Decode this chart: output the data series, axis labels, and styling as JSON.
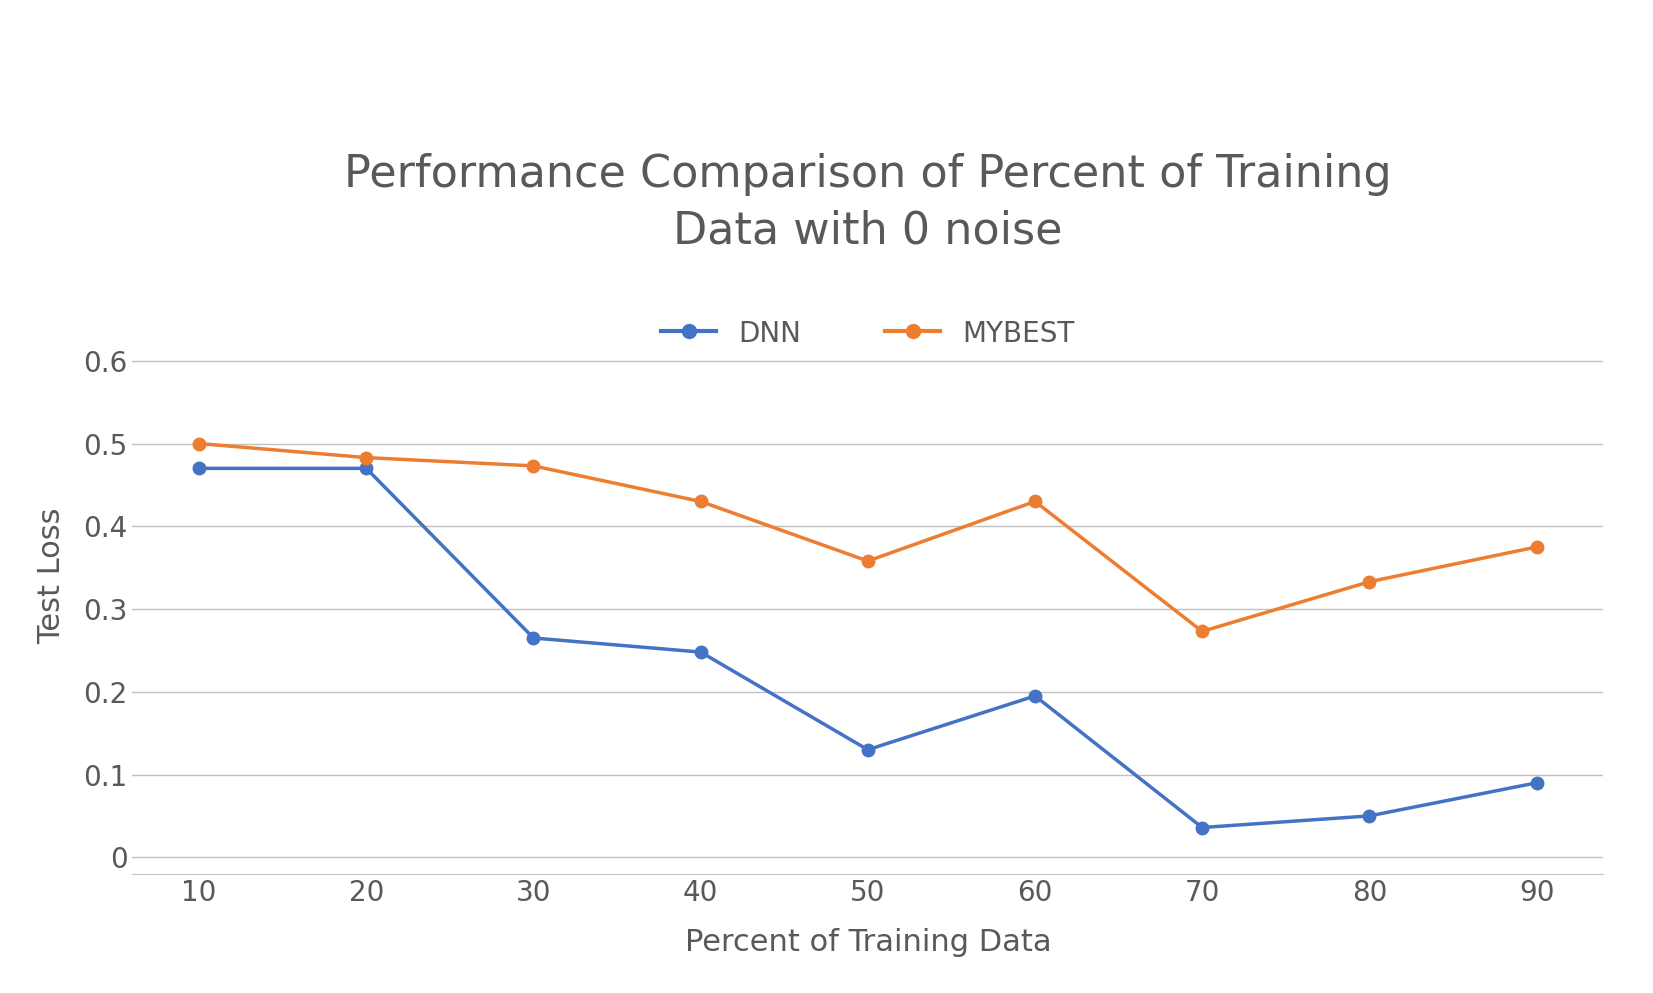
{
  "title": "Performance Comparison of Percent of Training\nData with 0 noise",
  "xlabel": "Percent of Training Data",
  "ylabel": "Test Loss",
  "x": [
    10,
    20,
    30,
    40,
    50,
    60,
    70,
    80,
    90
  ],
  "dnn_y": [
    0.47,
    0.47,
    0.265,
    0.248,
    0.13,
    0.195,
    0.036,
    0.05,
    0.09
  ],
  "mybest_y": [
    0.5,
    0.483,
    0.473,
    0.43,
    0.358,
    0.43,
    0.273,
    0.333,
    0.375
  ],
  "dnn_color": "#4472C4",
  "mybest_color": "#ED7D31",
  "background_color": "#FFFFFF",
  "text_color": "#595959",
  "ylim": [
    -0.02,
    0.7
  ],
  "yticks": [
    0.0,
    0.1,
    0.2,
    0.3,
    0.4,
    0.5,
    0.6
  ],
  "xticks": [
    10,
    20,
    30,
    40,
    50,
    60,
    70,
    80,
    90
  ],
  "title_fontsize": 32,
  "label_fontsize": 22,
  "tick_fontsize": 20,
  "legend_fontsize": 20,
  "line_width": 2.5,
  "marker_size": 9,
  "grid_color": "#C0C0C0"
}
